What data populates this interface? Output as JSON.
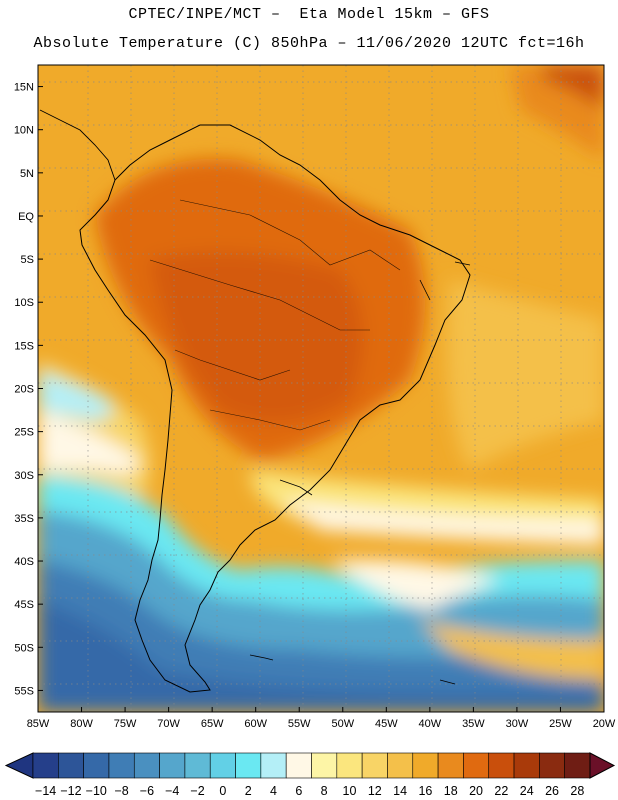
{
  "header": {
    "line1": "CPTEC/INPE/MCT –  Eta Model 15km – GFS",
    "line2": "Absolute Temperature (C) 850hPa – 11/06/2020 12UTC fct=16h"
  },
  "map": {
    "lat_labels": [
      "15N",
      "10N",
      "5N",
      "EQ",
      "5S",
      "10S",
      "15S",
      "20S",
      "25S",
      "30S",
      "35S",
      "40S",
      "45S",
      "50S",
      "55S"
    ],
    "lon_labels": [
      "85W",
      "80W",
      "75W",
      "70W",
      "65W",
      "60W",
      "55W",
      "50W",
      "45W",
      "40W",
      "35W",
      "30W",
      "25W",
      "20W"
    ],
    "lon_range_deg": [
      -85,
      -20
    ],
    "lat_range_deg": [
      -57.5,
      17.5
    ]
  },
  "colorbar": {
    "labels": [
      "-14",
      "-12",
      "-10",
      "-8",
      "-6",
      "-4",
      "-2",
      "0",
      "2",
      "4",
      "6",
      "8",
      "10",
      "12",
      "14",
      "16",
      "18",
      "20",
      "22",
      "24",
      "26",
      "28"
    ],
    "colors": [
      "#253f8a",
      "#2d5598",
      "#3569a8",
      "#3f7db5",
      "#4a90c0",
      "#55a6cc",
      "#5fbad6",
      "#62d0e6",
      "#6ae8f2",
      "#b4eff7",
      "#fff8e6",
      "#fdf5a6",
      "#fbe67e",
      "#f8d466",
      "#f4c04a",
      "#f0aa2a",
      "#e98a1e",
      "#e06a10",
      "#c94f0c",
      "#a93a0a",
      "#8a2b10",
      "#6f1d14"
    ],
    "under_color": "#1f3580",
    "over_color": "#6a1028"
  }
}
